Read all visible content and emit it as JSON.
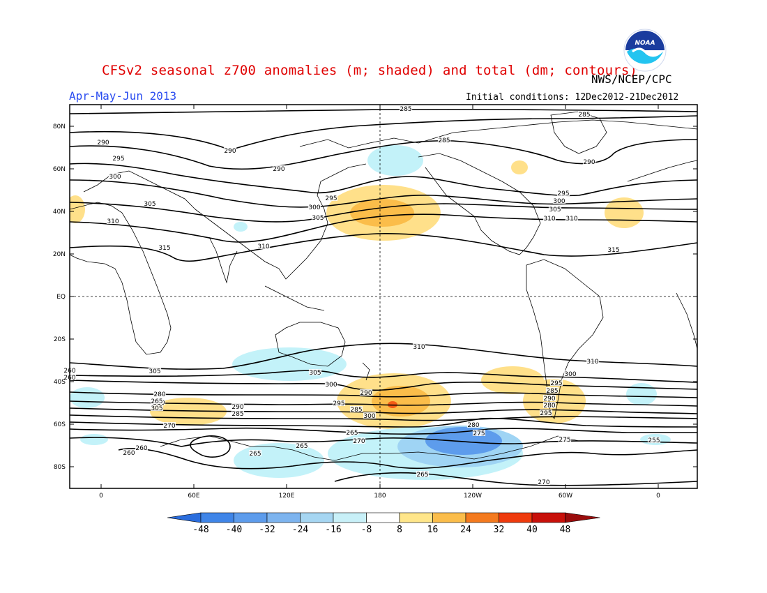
{
  "header": {
    "title": "CFSv2 seasonal z700 anomalies (m; shaded) and total (dm; contours)",
    "agency": "NWS/NCEP/CPC",
    "period": "Apr-May-Jun 2013",
    "initial_conditions": "Initial conditions: 12Dec2012-21Dec2012",
    "logo_text": "NOAA"
  },
  "map": {
    "lat_labels": [
      "80N",
      "60N",
      "40N",
      "20N",
      "EQ",
      "20S",
      "40S",
      "60S",
      "80S"
    ],
    "lon_labels": [
      "0",
      "60E",
      "120E",
      "180",
      "120W",
      "60W",
      "0"
    ],
    "contour_labels": [
      "285",
      "285",
      "290",
      "290",
      "290",
      "285",
      "295",
      "300",
      "290",
      "305",
      "295",
      "300",
      "305",
      "310",
      "310",
      "315",
      "310",
      "295",
      "300",
      "305",
      "310",
      "315",
      "310",
      "310",
      "305",
      "305",
      "300",
      "300",
      "295",
      "290",
      "285",
      "280",
      "310",
      "295",
      "290",
      "285",
      "280",
      "305",
      "300",
      "295",
      "290",
      "285",
      "280",
      "275",
      "270",
      "265",
      "275",
      "270",
      "265",
      "260",
      "260",
      "265",
      "265",
      "255",
      "270",
      "260",
      "260",
      "265"
    ],
    "anomaly_colors": {
      "positive_light": "#ffe08a",
      "positive_mid": "#fbbd4a",
      "positive_strong": "#f45a16",
      "negative_light": "#c3f2f9",
      "negative_mid": "#9fd4f4",
      "negative_strong": "#5d9cec"
    }
  },
  "colorbar": {
    "tick_labels": [
      "-48",
      "-40",
      "-32",
      "-24",
      "-16",
      "-8",
      "8",
      "16",
      "24",
      "32",
      "40",
      "48"
    ],
    "colors": [
      "#2a6ddd",
      "#3f85e8",
      "#5d9cec",
      "#7db4ef",
      "#a6d6f2",
      "#c8f0f8",
      "#ffffff",
      "#ffe68a",
      "#fbbd4a",
      "#f47a1e",
      "#ef3a0c",
      "#c8100a",
      "#9a0c0c"
    ]
  }
}
